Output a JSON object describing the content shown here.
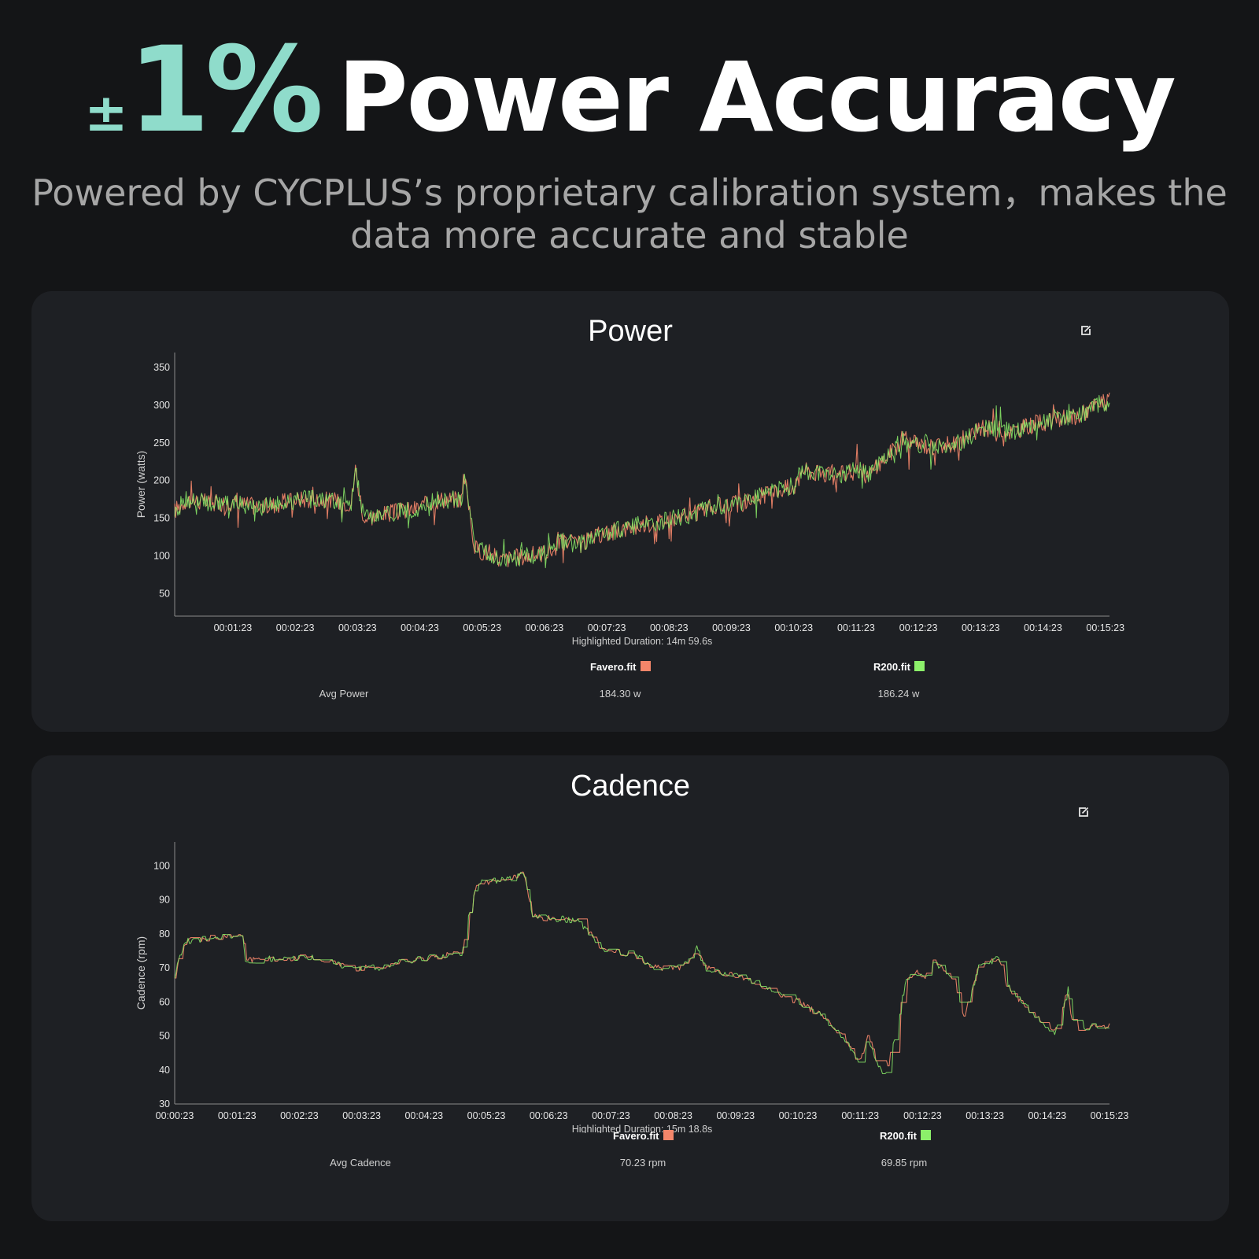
{
  "header": {
    "plus_minus": "±",
    "percent": "1%",
    "title_rest": "Power Accuracy",
    "subtitle_line1": "Powered by CYCPLUS’s proprietary calibration system，makes the",
    "subtitle_line2": "data more accurate and stable"
  },
  "colors": {
    "favero": "#f4866a",
    "r200": "#8cf06a",
    "accent": "#8fdccb"
  },
  "icons": {
    "edit": "edit-icon"
  },
  "power": {
    "title": "Power",
    "ylabel": "Power (watts)",
    "caption": "Highlighted Duration: 14m 59.6s",
    "stat_label": "Avg Power",
    "legend": [
      {
        "name": "Favero.fit",
        "value": "184.30 w"
      },
      {
        "name": "R200.fit",
        "value": "186.24 w"
      }
    ]
  },
  "cadence": {
    "title": "Cadence",
    "ylabel": "Cadence (rpm)",
    "caption": "Highlighted Duration: 15m 18.8s",
    "stat_label": "Avg Cadence",
    "legend": [
      {
        "name": "Favero.fit",
        "value": "70.23 rpm"
      },
      {
        "name": "R200.fit",
        "value": "69.85 rpm"
      }
    ]
  },
  "chart_data": [
    {
      "type": "line",
      "title": "Power",
      "xlabel": "",
      "ylabel": "Power (watts)",
      "x_unit": "hh:mm:ss",
      "xlim": [
        "00:00:27",
        "00:15:27"
      ],
      "ylim": [
        20,
        370
      ],
      "yticks": [
        50,
        100,
        150,
        200,
        250,
        300,
        350
      ],
      "xticks": [
        "00:01:23",
        "00:02:23",
        "00:03:23",
        "00:04:23",
        "00:05:23",
        "00:06:23",
        "00:07:23",
        "00:08:23",
        "00:09:23",
        "00:10:23",
        "00:11:23",
        "00:12:23",
        "00:13:23",
        "00:14:23",
        "00:15:23"
      ],
      "grid": false,
      "legend": "bottom",
      "x": [
        "00:00:27",
        "00:00:38",
        "00:01:01",
        "00:01:24",
        "00:01:54",
        "00:02:24",
        "00:02:47",
        "00:03:17",
        "00:03:21",
        "00:03:29",
        "00:03:47",
        "00:04:17",
        "00:04:43",
        "00:04:57",
        "00:05:03",
        "00:05:06",
        "00:05:16",
        "00:05:41",
        "00:06:08",
        "00:06:33",
        "00:06:36",
        "00:06:57",
        "00:07:20",
        "00:07:53",
        "00:08:22",
        "00:08:47",
        "00:08:53",
        "00:09:05",
        "00:09:33",
        "00:10:03",
        "00:10:28",
        "00:10:29",
        "00:11:01",
        "00:11:28",
        "00:11:34",
        "00:11:58",
        "00:12:11",
        "00:12:15",
        "00:12:36",
        "00:13:02",
        "00:13:14",
        "00:13:27",
        "00:13:53",
        "00:14:14",
        "00:14:35",
        "00:14:56",
        "00:15:14",
        "00:15:27"
      ],
      "series": [
        {
          "name": "Favero.fit",
          "values": [
            160,
            175,
            170,
            170,
            165,
            175,
            175,
            170,
            215,
            150,
            155,
            162,
            175,
            175,
            175,
            205,
            110,
            95,
            100,
            108,
            120,
            115,
            130,
            140,
            148,
            155,
            160,
            165,
            170,
            185,
            195,
            215,
            205,
            215,
            205,
            240,
            260,
            250,
            245,
            250,
            260,
            270,
            265,
            275,
            280,
            285,
            300,
            305
          ]
        },
        {
          "name": "R200.fit",
          "values": [
            160,
            175,
            170,
            170,
            165,
            175,
            175,
            170,
            215,
            150,
            155,
            162,
            175,
            175,
            175,
            205,
            110,
            95,
            100,
            108,
            120,
            115,
            130,
            140,
            148,
            155,
            160,
            165,
            170,
            185,
            195,
            215,
            205,
            215,
            205,
            240,
            260,
            250,
            245,
            250,
            260,
            270,
            265,
            275,
            280,
            285,
            300,
            305
          ]
        }
      ]
    },
    {
      "type": "line",
      "title": "Cadence",
      "xlabel": "",
      "ylabel": "Cadence (rpm)",
      "x_unit": "hh:mm:ss",
      "xlim": [
        "00:00:23",
        "00:15:23"
      ],
      "ylim": [
        30,
        107
      ],
      "yticks": [
        30,
        40,
        50,
        60,
        70,
        80,
        90,
        100
      ],
      "xticks": [
        "00:00:23",
        "00:01:23",
        "00:02:23",
        "00:03:23",
        "00:04:23",
        "00:05:23",
        "00:06:23",
        "00:07:23",
        "00:08:23",
        "00:09:23",
        "00:10:23",
        "00:11:23",
        "00:12:23",
        "00:13:23",
        "00:14:23",
        "00:15:23"
      ],
      "grid": false,
      "legend": "bottom",
      "x": [
        "00:00:23",
        "00:00:27",
        "00:00:35",
        "00:01:06",
        "00:01:29",
        "00:01:31",
        "00:02:08",
        "00:02:39",
        "00:03:01",
        "00:03:16",
        "00:03:45",
        "00:04:03",
        "00:04:50",
        "00:05:00",
        "00:05:05",
        "00:05:15",
        "00:05:44",
        "00:05:59",
        "00:06:08",
        "00:06:50",
        "00:07:17",
        "00:07:46",
        "00:08:02",
        "00:08:32",
        "00:08:46",
        "00:08:53",
        "00:09:18",
        "00:09:41",
        "00:09:58",
        "00:10:23",
        "00:10:46",
        "00:11:08",
        "00:11:23",
        "00:11:30",
        "00:11:46",
        "00:11:55",
        "00:12:07",
        "00:12:15",
        "00:12:26",
        "00:12:33",
        "00:12:53",
        "00:13:03",
        "00:13:16",
        "00:13:37",
        "00:13:42",
        "00:13:54",
        "00:14:18",
        "00:14:31",
        "00:14:43",
        "00:14:46",
        "00:14:53",
        "00:15:03",
        "00:15:20"
      ],
      "series": [
        {
          "name": "Favero.fit",
          "values": [
            67,
            73,
            78,
            79,
            80,
            72,
            73,
            73,
            71,
            70,
            70,
            72,
            74,
            74,
            84,
            95,
            96,
            98,
            85,
            84,
            75,
            74,
            70,
            70,
            76,
            70,
            68,
            66,
            63,
            60,
            56,
            49,
            42,
            50,
            37,
            48,
            66,
            69,
            67,
            72,
            67,
            56,
            70,
            73,
            66,
            61,
            54,
            51,
            64,
            56,
            52,
            53,
            53
          ]
        },
        {
          "name": "R200.fit",
          "values": [
            67,
            73,
            78,
            79,
            80,
            72,
            73,
            73,
            71,
            70,
            70,
            72,
            74,
            74,
            84,
            95,
            96,
            98,
            85,
            84,
            75,
            74,
            70,
            70,
            76,
            70,
            68,
            66,
            63,
            60,
            56,
            49,
            42,
            50,
            37,
            48,
            66,
            69,
            67,
            72,
            67,
            56,
            70,
            73,
            66,
            61,
            54,
            51,
            64,
            56,
            52,
            53,
            53
          ]
        }
      ]
    }
  ]
}
